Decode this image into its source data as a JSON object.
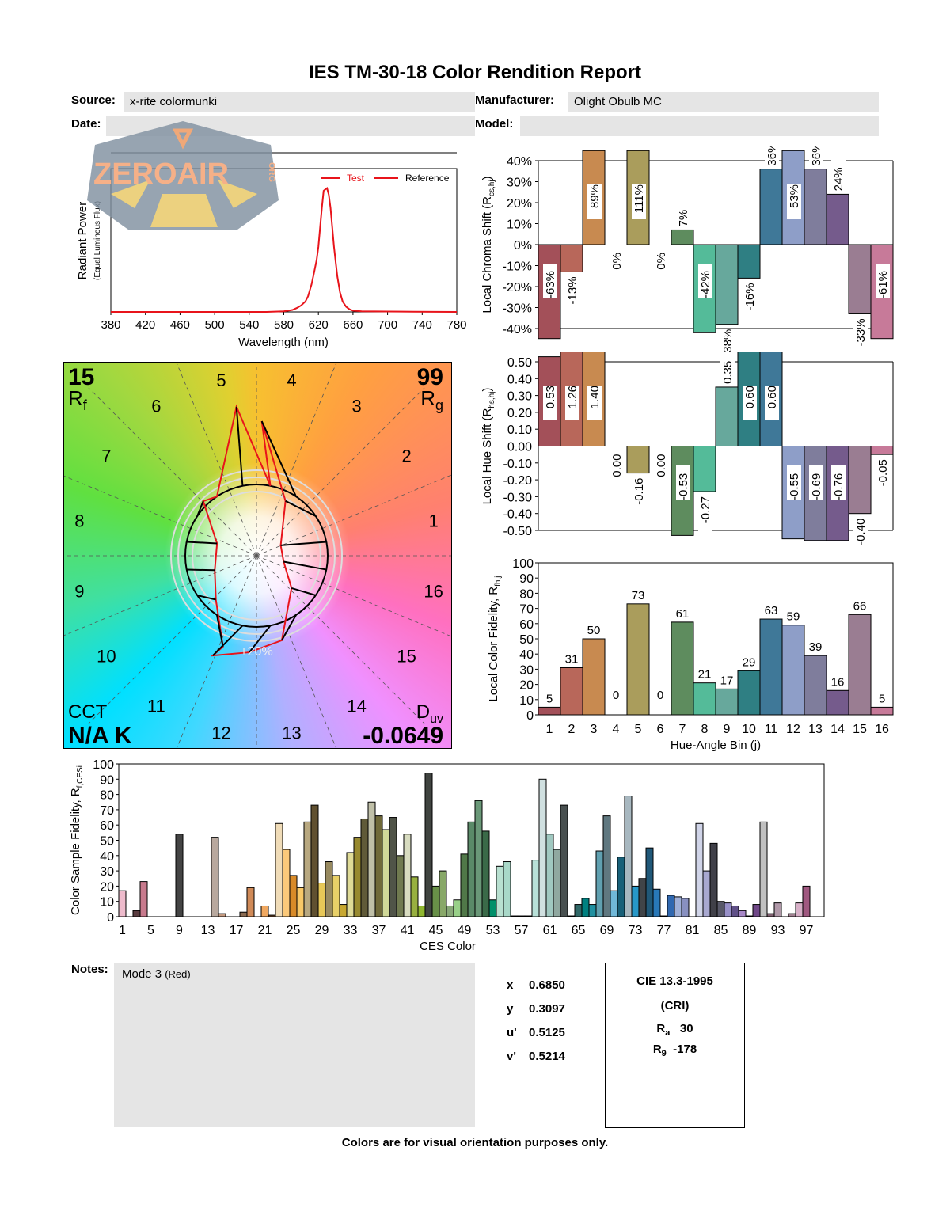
{
  "report": {
    "title": "IES TM-30-18 Color Rendition Report",
    "source_label": "Source:",
    "source_value": "x-rite colormunki",
    "manufacturer_label": "Manufacturer:",
    "manufacturer_value": "Olight Obulb MC",
    "date_label": "Date:",
    "date_value": "",
    "model_label": "Model:",
    "model_value": "",
    "watermark": "ZEROAIR",
    "watermark_suffix": "ORG",
    "notes_label": "Notes:",
    "notes_value": "Mode 3",
    "notes_value_suffix": "(Red)",
    "footer": "Colors are for visual orientation purposes only."
  },
  "metrics": {
    "rf_value": "15",
    "rf_label": "R",
    "rf_sub": "f",
    "rg_value": "99",
    "rg_label": "R",
    "rg_sub": "g",
    "cct_label": "CCT",
    "cct_value": "N/A K",
    "duv_label": "D",
    "duv_sub": "uv",
    "duv_value": "-0.0649",
    "scale_label": "+20%"
  },
  "chromaticity": [
    {
      "label": "x",
      "value": "0.6850"
    },
    {
      "label": "y",
      "value": "0.3097"
    },
    {
      "label": "u'",
      "value": "0.5125"
    },
    {
      "label": "v'",
      "value": "0.5214"
    }
  ],
  "cri": {
    "title": "CIE 13.3-1995",
    "subtitle": "(CRI)",
    "ra_label": "R",
    "ra_sub": "a",
    "ra_value": "30",
    "r9_label": "R",
    "r9_sub": "9",
    "r9_value": "-178"
  },
  "bin_colors": [
    "#a35059",
    "#b8675a",
    "#c88a50",
    "#c9a957",
    "#aa9d5c",
    "#8c9e5e",
    "#5e8c5e",
    "#54bb99",
    "#67a89c",
    "#2f7f83",
    "#3f7898",
    "#8e9ec8",
    "#7f7d9c",
    "#755b8c",
    "#9a7d92",
    "#c77a99"
  ],
  "chart_data": [
    {
      "id": "spd",
      "type": "line",
      "title": "",
      "xlabel": "Wavelength (nm)",
      "ylabel": "Radiant Power",
      "ylabel_sub": "(Equal Luminous Flux)",
      "xlim": [
        380,
        780
      ],
      "ylim": [
        0,
        1.1
      ],
      "xticks": [
        380,
        420,
        460,
        500,
        540,
        580,
        620,
        660,
        700,
        740,
        780
      ],
      "legend": [
        {
          "name": "Test",
          "color": "#e8141b"
        },
        {
          "name": "Reference",
          "color": "#e8141b"
        }
      ],
      "legend_position": "top-right",
      "series": [
        {
          "name": "Test",
          "x": [
            380,
            560,
            580,
            590,
            595,
            600,
            605,
            608,
            612,
            615,
            618,
            620,
            622,
            624,
            626,
            628,
            630,
            632,
            634,
            636,
            638,
            640,
            642,
            645,
            648,
            652,
            656,
            660,
            670,
            700,
            730,
            780
          ],
          "y": [
            0.0,
            0.0,
            0.005,
            0.015,
            0.03,
            0.05,
            0.08,
            0.12,
            0.21,
            0.3,
            0.4,
            0.5,
            0.65,
            0.8,
            0.93,
            0.94,
            0.95,
            0.9,
            0.8,
            0.65,
            0.5,
            0.38,
            0.27,
            0.15,
            0.08,
            0.04,
            0.02,
            0.01,
            0.005,
            0.003,
            0.002,
            0.0
          ]
        }
      ]
    },
    {
      "id": "chroma-shift",
      "type": "bar",
      "title": "",
      "ylabel": "Local Chroma Shift (R",
      "ylabel_sub": "cs,hj",
      "ylim": [
        -40,
        40
      ],
      "yticks": [
        "40%",
        "30%",
        "20%",
        "10%",
        "0%",
        "-10%",
        "-20%",
        "-30%",
        "-40%"
      ],
      "categories": [
        1,
        2,
        3,
        4,
        5,
        6,
        7,
        8,
        9,
        10,
        11,
        12,
        13,
        14,
        15,
        16
      ],
      "values": [
        -63,
        -13,
        89,
        0,
        111,
        0,
        7,
        -42,
        -38,
        -16,
        36,
        53,
        36,
        24,
        -33,
        -61
      ],
      "labels": [
        "-63%",
        "-13%",
        "89%",
        "0%",
        "111%",
        "0%",
        "7%",
        "-42%",
        "-38%",
        "-16%",
        "36%",
        "53%",
        "36%",
        "24%",
        "-33%",
        "-61%"
      ]
    },
    {
      "id": "hue-shift",
      "type": "bar",
      "title": "",
      "ylabel": "Local Hue Shift (R",
      "ylabel_sub": "hs,hj",
      "ylim": [
        -0.5,
        0.5
      ],
      "yticks": [
        "0.50",
        "0.40",
        "0.30",
        "0.20",
        "0.10",
        "0.00",
        "-0.10",
        "-0.20",
        "-0.30",
        "-0.40",
        "-0.50"
      ],
      "categories": [
        1,
        2,
        3,
        4,
        5,
        6,
        7,
        8,
        9,
        10,
        11,
        12,
        13,
        14,
        15,
        16
      ],
      "values": [
        0.53,
        1.26,
        1.4,
        0.0,
        -0.16,
        0.0,
        -0.53,
        -0.27,
        0.35,
        0.6,
        0.6,
        -0.55,
        -0.69,
        -0.76,
        -0.4,
        -0.05
      ],
      "labels": [
        "0.53",
        "1.26",
        "1.40",
        "0.00",
        "-0.16",
        "0.00",
        "-0.53",
        "-0.27",
        "0.35",
        "0.60",
        "0.60",
        "-0.55",
        "-0.69",
        "-0.76",
        "-0.40",
        "-0.05"
      ]
    },
    {
      "id": "local-fidelity",
      "type": "bar",
      "title": "",
      "xlabel": "Hue-Angle Bin (j)",
      "ylabel": "Local Color Fidelity, R",
      "ylabel_sub": "fh,j",
      "ylim": [
        0,
        100
      ],
      "yticks": [
        0,
        10,
        20,
        30,
        40,
        50,
        60,
        70,
        80,
        90,
        100
      ],
      "categories": [
        "1",
        "2",
        "3",
        "4",
        "5",
        "6",
        "7",
        "8",
        "9",
        "10",
        "11",
        "12",
        "13",
        "14",
        "15",
        "16"
      ],
      "values": [
        5,
        31,
        50,
        0,
        73,
        0,
        61,
        21,
        17,
        29,
        63,
        59,
        39,
        16,
        66,
        5
      ]
    },
    {
      "id": "ces-fidelity",
      "type": "bar",
      "title": "",
      "xlabel": "CES Color",
      "ylabel": "Color Sample Fidelity, R",
      "ylabel_sub": "f,CESi",
      "ylim": [
        0,
        100
      ],
      "yticks": [
        0,
        10,
        20,
        30,
        40,
        50,
        60,
        70,
        80,
        90,
        100
      ],
      "xticks": [
        "1",
        "5",
        "9",
        "13",
        "17",
        "21",
        "25",
        "29",
        "33",
        "37",
        "41",
        "45",
        "49",
        "53",
        "57",
        "61",
        "65",
        "69",
        "73",
        "77",
        "81",
        "85",
        "89",
        "93",
        "97"
      ],
      "values": [
        17,
        0,
        4,
        23,
        0,
        0,
        0,
        0,
        54,
        0,
        0,
        0,
        0,
        52,
        2,
        0,
        0,
        3,
        19,
        0,
        7,
        1,
        61,
        44,
        27,
        19,
        62,
        73,
        22,
        36,
        27,
        8,
        42,
        52,
        64,
        75,
        66,
        57,
        65,
        40,
        54,
        26,
        7,
        94,
        20,
        30,
        7,
        11,
        41,
        62,
        76,
        56,
        11,
        33,
        36,
        0.5,
        0.5,
        0.5,
        37,
        90,
        54,
        44,
        73,
        0.5,
        8,
        12,
        8,
        43,
        66,
        17,
        39,
        79,
        20,
        25,
        45,
        18,
        0.5,
        14,
        13,
        12,
        0,
        61,
        30,
        48,
        10,
        9,
        7,
        4,
        0.5,
        8,
        62,
        2,
        9,
        0,
        2,
        9,
        20,
        0,
        0
      ],
      "colors": [
        "#eebbcc",
        "#c9a0a8",
        "#5a3c40",
        "#c87a8d",
        "#b28080",
        "#a06060",
        "#905050",
        "#8a6a6a",
        "#444444",
        "#7a5a50",
        "#a08070",
        "#b09080",
        "#c0a090",
        "#b8a89e",
        "#c49a80",
        "#a07050",
        "#8a6048",
        "#8a6a50",
        "#d08a58",
        "#c07040",
        "#f0a860",
        "#7a5030",
        "#f0dcb8",
        "#fbc97a",
        "#d88a28",
        "#f8c868",
        "#b8a880",
        "#605030",
        "#e8c858",
        "#988a60",
        "#e8d068",
        "#c8a830",
        "#e0dc98",
        "#988a30",
        "#605a38",
        "#c0c0a8",
        "#706a3a",
        "#d0d898",
        "#505448",
        "#707a50",
        "#d8dcc0",
        "#98b040",
        "#90b830",
        "#404440",
        "#689048",
        "#88a868",
        "#88a878",
        "#98d088",
        "#507848",
        "#5a8a68",
        "#6a9878",
        "#3a6a48",
        "#00906a",
        "#b8e0d0",
        "#a8d8c8",
        "#a8d8c8",
        "#a0c8c0",
        "#a0c8c0",
        "#b8e0d8",
        "#d0e0e0",
        "#a0c8c0",
        "#90a8a0",
        "#485050",
        "#385858",
        "#306868",
        "#008080",
        "#2090a0",
        "#60a0b0",
        "#607880",
        "#70b8d8",
        "#186078",
        "#a8b8c0",
        "#2898c8",
        "#404448",
        "#205878",
        "#2878b8",
        "#3050a0",
        "#3068b0",
        "#a0b0d8",
        "#8890c0",
        "#c0c4e8",
        "#d0d4e8",
        "#a8a8d0",
        "#404048",
        "#585868",
        "#9890c8",
        "#605088",
        "#a888c8",
        "#606070",
        "#704888",
        "#c0c0c0",
        "#806070",
        "#b098a8",
        "#c0a8b8",
        "#a08090",
        "#d8b0c8",
        "#a05880",
        "#c08090",
        "#d0a0b0"
      ]
    }
  ]
}
